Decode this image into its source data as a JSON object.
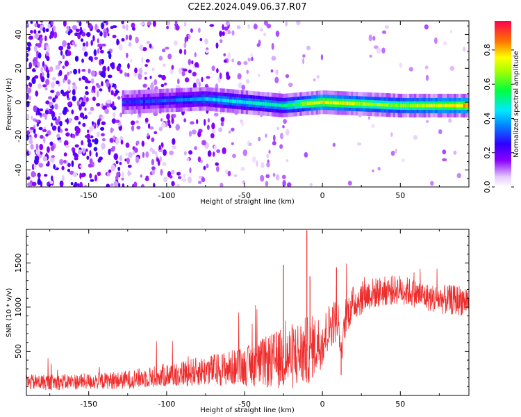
{
  "figure": {
    "title": "C2E2.2024.049.06.37.R07"
  },
  "colors": {
    "snr_line": "#ee2c2c",
    "axes": "#000000",
    "colormap": [
      "#ffffff",
      "#8a00ff",
      "#2a00ff",
      "#00d0ff",
      "#00ff40",
      "#ffff00",
      "#ff7000",
      "#ff0040"
    ]
  },
  "chart_data": [
    {
      "type": "heatmap",
      "title": "",
      "xlabel": "Height of straight line (km)",
      "ylabel": "Frequency (Hz)",
      "xlim": [
        -190,
        94
      ],
      "ylim": [
        -50,
        48
      ],
      "x_ticks": [
        -150,
        -100,
        -50,
        0,
        50
      ],
      "y_ticks": [
        -40,
        -20,
        0,
        20,
        40
      ],
      "colorbar": {
        "label": "Normalized spectral amplitude",
        "range": [
          0.0,
          0.97
        ],
        "ticks": [
          0.0,
          0.2,
          0.4,
          0.6,
          0.8
        ],
        "colormap": "rainbow"
      },
      "ridge": {
        "description": "Signal carrier concentrated near 0 Hz, strengthening with height",
        "x": [
          -125,
          -100,
          -75,
          -50,
          -25,
          0,
          25,
          50,
          75,
          94
        ],
        "center_hz": [
          0,
          1,
          2,
          0,
          -2,
          0,
          -1,
          -2,
          -2,
          -2
        ],
        "peak_amplitude": [
          0.3,
          0.35,
          0.45,
          0.5,
          0.55,
          0.85,
          0.75,
          0.7,
          0.8,
          0.9
        ]
      }
    },
    {
      "type": "line",
      "title": "",
      "xlabel": "Height of straight line (km)",
      "ylabel": "SNR (10 * v/v)",
      "xlim": [
        -190,
        94
      ],
      "ylim": [
        0,
        1880
      ],
      "x_ticks": [
        -150,
        -100,
        -50,
        0,
        50
      ],
      "y_ticks": [
        500,
        1000,
        1500
      ],
      "series": [
        {
          "x": [
            -190,
            -170,
            -150,
            -130,
            -110,
            -90,
            -70,
            -50,
            -35,
            -20,
            -10,
            -5,
            0,
            5,
            10,
            12,
            15,
            20,
            30,
            40,
            50,
            60,
            70,
            80,
            94
          ],
          "y_mean": [
            150,
            150,
            160,
            170,
            210,
            250,
            290,
            330,
            380,
            440,
            500,
            560,
            620,
            800,
            870,
            450,
            900,
            1050,
            1150,
            1180,
            1200,
            1150,
            1100,
            1080,
            1080
          ],
          "y_spread": [
            90,
            90,
            90,
            100,
            120,
            150,
            180,
            220,
            300,
            380,
            400,
            350,
            300,
            260,
            250,
            100,
            220,
            200,
            180,
            170,
            170,
            160,
            160,
            170,
            180
          ],
          "spikes": [
            {
              "x": -10,
              "y": 1870
            },
            {
              "x": -8,
              "y": 1350
            },
            {
              "x": -25,
              "y": 1480
            },
            {
              "x": 9,
              "y": 1450
            },
            {
              "x": 12,
              "y": 230
            }
          ]
        }
      ]
    }
  ]
}
